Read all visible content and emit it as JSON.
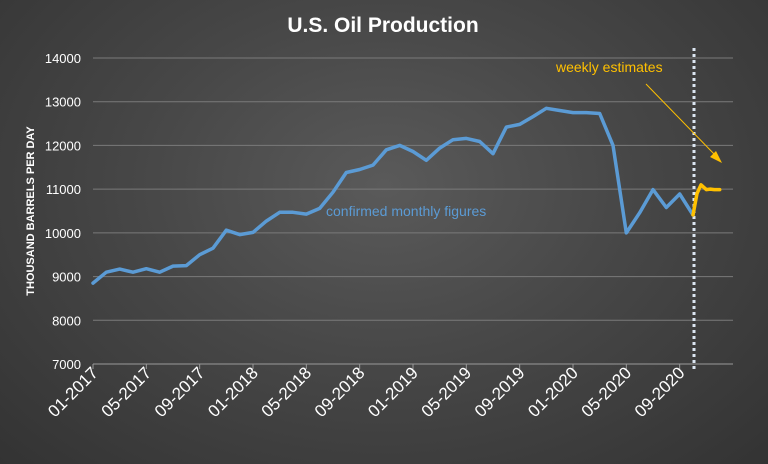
{
  "colors": {
    "monthly": "#5b9bd5",
    "weekly": "#ffc000",
    "divider": "#dce6f2",
    "grid": "#7a7a7a",
    "text": "#ffffff"
  },
  "chart_data": {
    "type": "line",
    "title": "U.S. Oil Production",
    "ylabel": "THOUSAND BARRELS PER DAY",
    "ylim": [
      7000,
      14000
    ],
    "yticks": [
      7000,
      8000,
      9000,
      10000,
      11000,
      12000,
      13000,
      14000
    ],
    "xtick_labels": [
      "01-2017",
      "05-2017",
      "09-2017",
      "01-2018",
      "05-2018",
      "09-2018",
      "01-2019",
      "05-2019",
      "09-2019",
      "01-2020",
      "05-2020",
      "09-2020"
    ],
    "grid": true,
    "series": [
      {
        "name": "confirmed monthly figures",
        "x": [
          "01-2017",
          "02-2017",
          "03-2017",
          "04-2017",
          "05-2017",
          "06-2017",
          "07-2017",
          "08-2017",
          "09-2017",
          "10-2017",
          "11-2017",
          "12-2017",
          "01-2018",
          "02-2018",
          "03-2018",
          "04-2018",
          "05-2018",
          "06-2018",
          "07-2018",
          "08-2018",
          "09-2018",
          "10-2018",
          "11-2018",
          "12-2018",
          "01-2019",
          "02-2019",
          "03-2019",
          "04-2019",
          "05-2019",
          "06-2019",
          "07-2019",
          "08-2019",
          "09-2019",
          "10-2019",
          "11-2019",
          "12-2019",
          "01-2020",
          "02-2020",
          "03-2020",
          "04-2020",
          "05-2020",
          "06-2020",
          "07-2020",
          "08-2020",
          "09-2020",
          "10-2020"
        ],
        "values": [
          8850,
          9100,
          9170,
          9100,
          9180,
          9100,
          9240,
          9250,
          9500,
          9650,
          10060,
          9960,
          10010,
          10270,
          10470,
          10470,
          10430,
          10560,
          10930,
          11380,
          11450,
          11550,
          11900,
          12000,
          11860,
          11660,
          11940,
          12130,
          12160,
          12090,
          11810,
          12420,
          12480,
          12660,
          12850,
          12800,
          12750,
          12750,
          12730,
          12000,
          10000,
          10460,
          10990,
          10580,
          10890,
          10410
        ]
      },
      {
        "name": "weekly estimates",
        "x": [
          "10-2020",
          "10.3-2020",
          "10.6-2020",
          "11-2020",
          "11.3-2020",
          "11.6-2020",
          "12-2020"
        ],
        "values": [
          10410,
          10900,
          11100,
          10990,
          11000,
          10990,
          10990
        ]
      }
    ],
    "annotations": [
      {
        "text": "confirmed monthly figures",
        "series": "monthly"
      },
      {
        "text": "weekly estimates",
        "series": "weekly"
      }
    ]
  }
}
